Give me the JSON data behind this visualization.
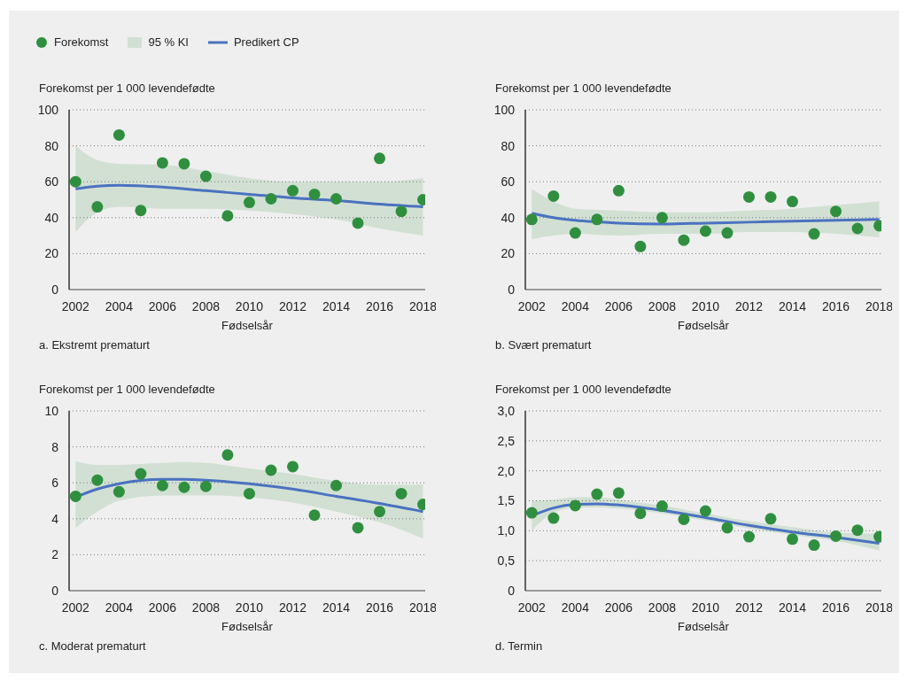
{
  "chart_data": [
    {
      "type": "scatter",
      "title": "a. Ekstremt prematurt",
      "xlabel": "Fødselsår",
      "ylabel": "Forekomst per 1 000 levendefødte",
      "legend": "top left",
      "grid": "y",
      "line_style": "solid",
      "annotations": [
        "95 % KI"
      ],
      "x": [
        2002,
        2003,
        2004,
        2005,
        2006,
        2007,
        2008,
        2009,
        2010,
        2011,
        2012,
        2013,
        2014,
        2015,
        2016,
        2017,
        2018
      ],
      "xlim": [
        2001.7,
        2018.1
      ],
      "xticks": [
        2002,
        2004,
        2006,
        2008,
        2010,
        2012,
        2014,
        2016,
        2018
      ],
      "ylim": [
        0,
        100
      ],
      "yticks": [
        0,
        20,
        40,
        60,
        80,
        100
      ],
      "series": [
        {
          "type": "scatter",
          "name": "Forekomst",
          "marker": "circle",
          "color": "#2f8f3f",
          "values": [
            60,
            46,
            86,
            44,
            70.5,
            70,
            63,
            41,
            48.5,
            50.5,
            55,
            53,
            50.5,
            37,
            73,
            43.5,
            50
          ]
        },
        {
          "type": "line",
          "name": "Predikert CP",
          "color": "#4a72c0",
          "x": [
            2002,
            2003,
            2004,
            2006,
            2008,
            2010,
            2012,
            2014,
            2016,
            2018
          ],
          "values": [
            56,
            57.5,
            58,
            57,
            55,
            53,
            51,
            49.5,
            47.5,
            46
          ],
          "lower": [
            32,
            43,
            46,
            45,
            45,
            44,
            42,
            39,
            34,
            30
          ],
          "upper": [
            80,
            72,
            70,
            69.5,
            66,
            62,
            60,
            60,
            60,
            62
          ]
        }
      ]
    },
    {
      "type": "scatter",
      "title": "b. Svært prematurt",
      "xlabel": "Fødselsår",
      "ylabel": "Forekomst per 1 000 levendefødte",
      "grid": "y",
      "line_style": "solid",
      "x": [
        2002,
        2003,
        2004,
        2005,
        2006,
        2007,
        2008,
        2009,
        2010,
        2011,
        2012,
        2013,
        2014,
        2015,
        2016,
        2017,
        2018
      ],
      "xlim": [
        2001.7,
        2018.1
      ],
      "xticks": [
        2002,
        2004,
        2006,
        2008,
        2010,
        2012,
        2014,
        2016,
        2018
      ],
      "ylim": [
        0,
        100
      ],
      "yticks": [
        0,
        20,
        40,
        60,
        80,
        100
      ],
      "series": [
        {
          "type": "scatter",
          "marker": "circle",
          "color": "#2f8f3f",
          "values": [
            39,
            52,
            31.5,
            39,
            55,
            24,
            40,
            27.5,
            32.5,
            31.5,
            51.5,
            51.5,
            49,
            31,
            43.5,
            34,
            35.5
          ]
        },
        {
          "type": "line",
          "color": "#4a72c0",
          "x": [
            2002,
            2003,
            2004,
            2006,
            2008,
            2010,
            2012,
            2014,
            2016,
            2018
          ],
          "values": [
            42.5,
            40,
            38.5,
            37,
            36.5,
            37,
            37.5,
            38,
            38.5,
            39
          ],
          "lower": [
            28,
            30,
            31,
            30,
            31,
            31,
            32,
            32,
            31,
            29
          ],
          "upper": [
            56,
            49,
            45,
            44,
            43,
            43,
            44,
            45,
            47,
            49
          ]
        }
      ]
    },
    {
      "type": "scatter",
      "title": "c. Moderat prematurt",
      "xlabel": "Fødselsår",
      "ylabel": "Forekomst per 1 000 levendefødte",
      "grid": "y",
      "line_style": "solid",
      "x": [
        2002,
        2003,
        2004,
        2005,
        2006,
        2007,
        2008,
        2009,
        2010,
        2011,
        2012,
        2013,
        2014,
        2015,
        2016,
        2017,
        2018
      ],
      "xlim": [
        2001.7,
        2018.1
      ],
      "xticks": [
        2002,
        2004,
        2006,
        2008,
        2010,
        2012,
        2014,
        2016,
        2018
      ],
      "ylim": [
        0,
        10
      ],
      "yticks": [
        0,
        2,
        4,
        6,
        8,
        10
      ],
      "series": [
        {
          "type": "scatter",
          "marker": "circle",
          "color": "#2f8f3f",
          "values": [
            5.25,
            6.15,
            5.5,
            6.5,
            5.85,
            5.75,
            5.8,
            7.55,
            5.4,
            6.7,
            6.9,
            4.2,
            5.85,
            3.5,
            4.4,
            5.4,
            4.8
          ]
        },
        {
          "type": "line",
          "color": "#4a72c0",
          "x": [
            2002,
            2003,
            2004,
            2006,
            2007,
            2008,
            2010,
            2012,
            2014,
            2016,
            2018
          ],
          "values": [
            5.2,
            5.65,
            5.95,
            6.2,
            6.2,
            6.15,
            5.95,
            5.65,
            5.25,
            4.85,
            4.4
          ],
          "lower": [
            3.5,
            4.4,
            5,
            5.3,
            5.3,
            5.3,
            5.2,
            4.9,
            4.4,
            3.8,
            2.9
          ],
          "upper": [
            7.2,
            7,
            7,
            7.1,
            7.15,
            7.1,
            6.8,
            6.5,
            6.1,
            5.9,
            5.9
          ]
        }
      ]
    },
    {
      "type": "scatter",
      "title": "d. Termin",
      "xlabel": "Fødselsår",
      "ylabel": "Forekomst per 1 000 levendefødte",
      "grid": "y",
      "line_style": "solid",
      "x": [
        2002,
        2003,
        2004,
        2005,
        2006,
        2007,
        2008,
        2009,
        2010,
        2011,
        2012,
        2013,
        2014,
        2015,
        2016,
        2017,
        2018
      ],
      "xlim": [
        2001.7,
        2018.1
      ],
      "xticks": [
        2002,
        2004,
        2006,
        2008,
        2010,
        2012,
        2014,
        2016,
        2018
      ],
      "ylim": [
        0,
        3
      ],
      "yticks": [
        0,
        {
          "value": 0.5,
          "label": "0,5"
        },
        {
          "value": 1,
          "label": "1,0"
        },
        {
          "value": 1.5,
          "label": "1,5"
        },
        {
          "value": 2,
          "label": "2,0"
        },
        {
          "value": 2.5,
          "label": "2,5"
        },
        {
          "value": 3,
          "label": "3,0"
        }
      ],
      "series": [
        {
          "type": "scatter",
          "marker": "circle",
          "color": "#2f8f3f",
          "values": [
            1.3,
            1.21,
            1.42,
            1.61,
            1.63,
            1.29,
            1.41,
            1.19,
            1.33,
            1.05,
            0.9,
            1.2,
            0.86,
            0.76,
            0.91,
            1.01,
            0.9
          ]
        },
        {
          "type": "line",
          "color": "#4a72c0",
          "x": [
            2002,
            2003,
            2004,
            2005,
            2006,
            2008,
            2010,
            2012,
            2014,
            2016,
            2018
          ],
          "values": [
            1.25,
            1.38,
            1.44,
            1.45,
            1.43,
            1.34,
            1.22,
            1.09,
            0.98,
            0.89,
            0.79
          ],
          "lower": [
            1,
            1.3,
            1.38,
            1.39,
            1.37,
            1.29,
            1.17,
            1.04,
            0.93,
            0.83,
            0.67
          ],
          "upper": [
            1.5,
            1.52,
            1.56,
            1.56,
            1.52,
            1.42,
            1.29,
            1.16,
            1.06,
            0.97,
            0.95
          ]
        }
      ]
    }
  ]
}
